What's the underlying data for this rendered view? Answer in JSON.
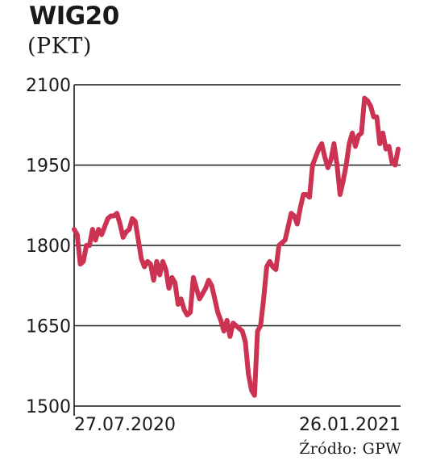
{
  "header": {
    "title": "WIG20",
    "subtitle": "(PKT)"
  },
  "footer": {
    "source": "Źródło: GPW"
  },
  "colors": {
    "line": "#cc3352",
    "grid": "#1a1a1a",
    "text": "#1a1a1a"
  },
  "chart_data": {
    "type": "line",
    "title": "WIG20",
    "ylabel": "(PKT)",
    "xlabel": "",
    "ylim": [
      1500,
      2100
    ],
    "yticks": [
      1500,
      1650,
      1800,
      1950,
      2100
    ],
    "xtick_labels": [
      "27.07.2020",
      "26.01.2021"
    ],
    "grid": "horizontal",
    "series": [
      {
        "values": [
          1830,
          1820,
          1765,
          1770,
          1800,
          1800,
          1830,
          1810,
          1830,
          1820,
          1835,
          1850,
          1855,
          1855,
          1860,
          1840,
          1815,
          1825,
          1830,
          1850,
          1845,
          1810,
          1775,
          1760,
          1770,
          1765,
          1735,
          1770,
          1745,
          1770,
          1755,
          1720,
          1740,
          1730,
          1690,
          1700,
          1680,
          1670,
          1675,
          1740,
          1720,
          1700,
          1710,
          1720,
          1735,
          1725,
          1700,
          1675,
          1660,
          1640,
          1660,
          1630,
          1655,
          1650,
          1645,
          1640,
          1620,
          1560,
          1530,
          1520,
          1640,
          1650,
          1700,
          1760,
          1770,
          1760,
          1755,
          1800,
          1805,
          1810,
          1835,
          1860,
          1855,
          1840,
          1870,
          1895,
          1895,
          1890,
          1950,
          1965,
          1980,
          1990,
          1965,
          1945,
          1960,
          1990,
          1950,
          1895,
          1920,
          1950,
          1990,
          2010,
          1985,
          2005,
          2010,
          2075,
          2070,
          2060,
          2040,
          2040,
          1990,
          2010,
          1980,
          1985,
          1955,
          1950,
          1980
        ]
      }
    ]
  }
}
